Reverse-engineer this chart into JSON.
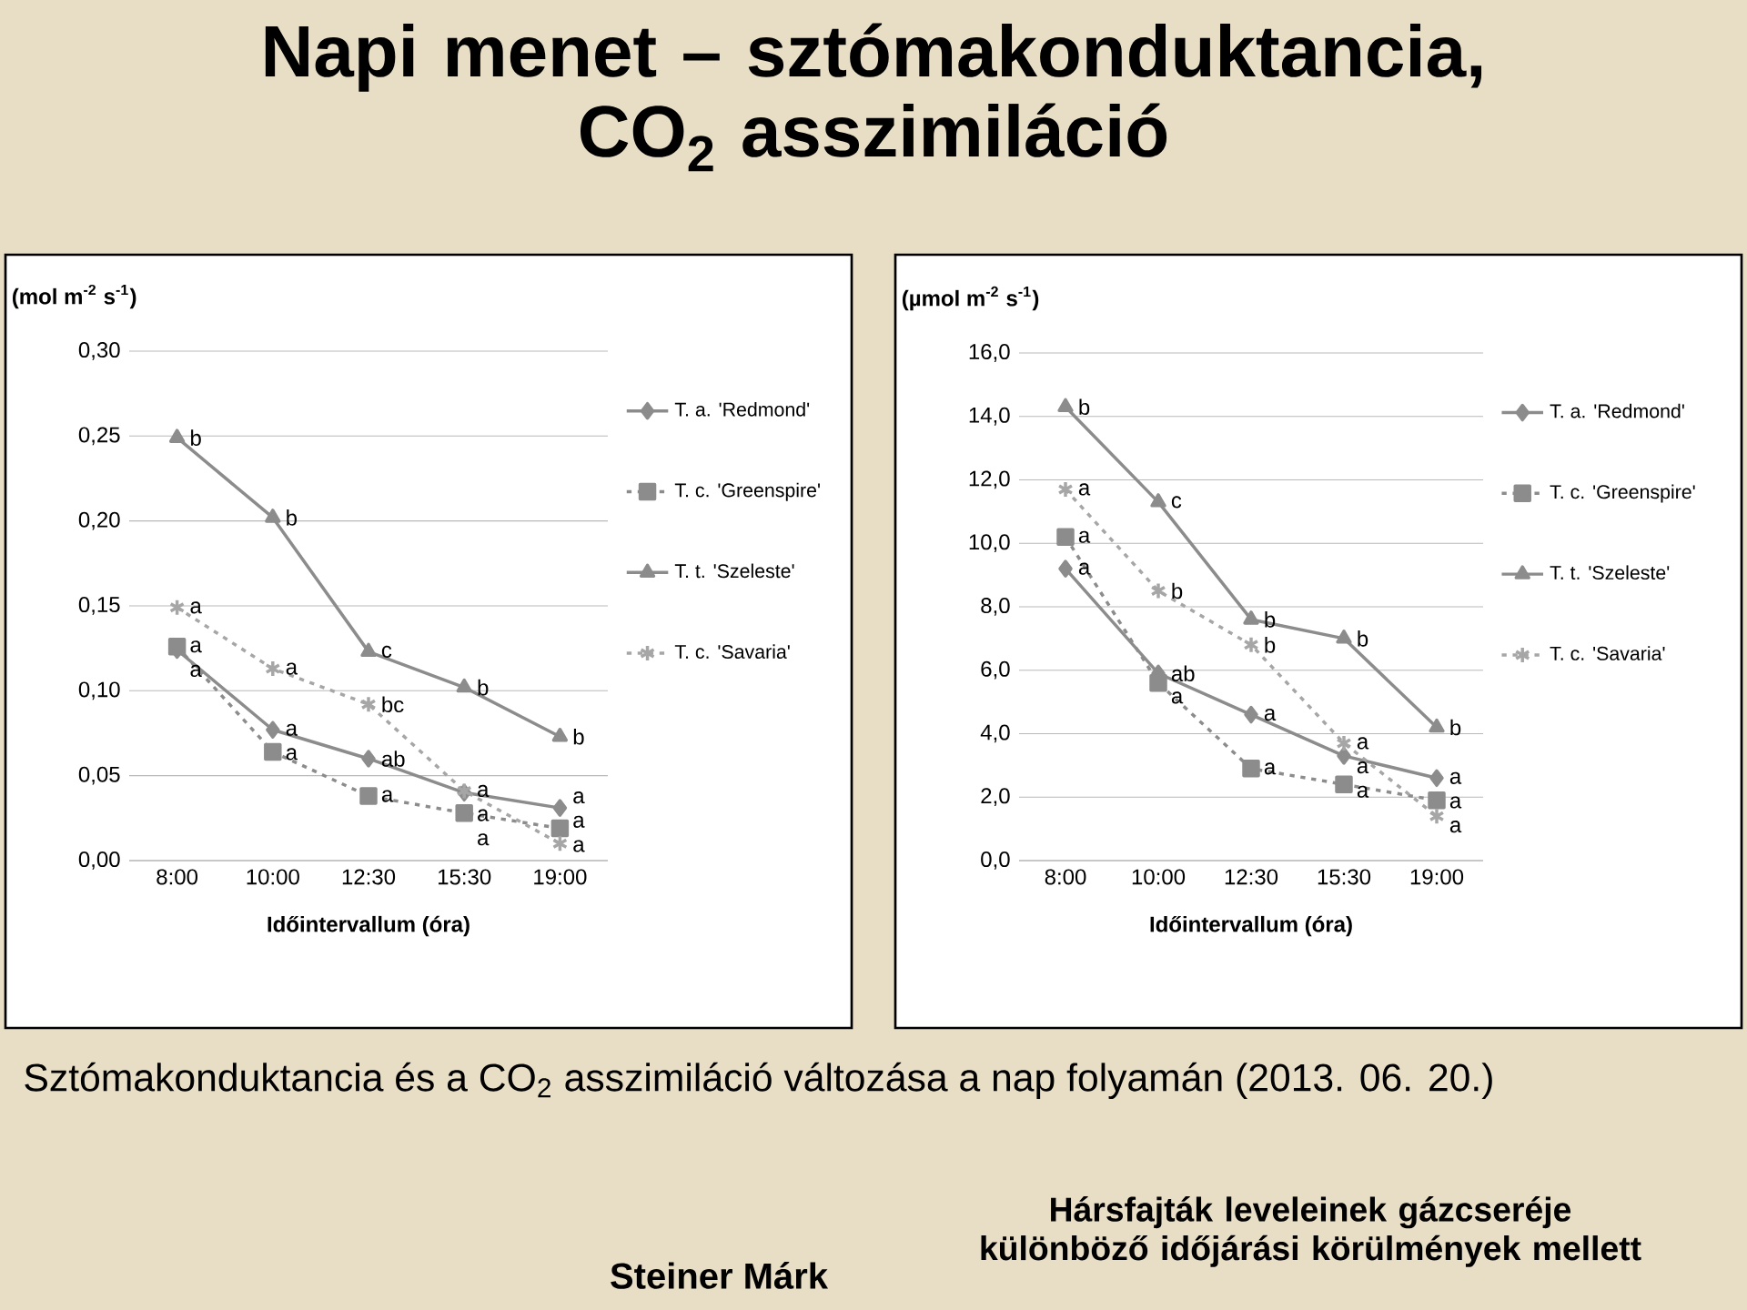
{
  "chart_data": [
    {
      "type": "line",
      "title": "Napi menet – sztómakonduktancia, CO$_{2}$ asszimiláció",
      "ylabel": "(mol m$^{-2}$ s$^{-1}$)",
      "xlabel": "Időintervallum (óra)",
      "categories": [
        "8:00",
        "10:00",
        "12:30",
        "15:30",
        "19:00"
      ],
      "ylim": [
        0,
        0.3
      ],
      "yticks": [
        {
          "value": 0,
          "label": "0,00"
        },
        {
          "value": 0.05,
          "label": "0,05"
        },
        {
          "value": 0.1,
          "label": "0,10"
        },
        {
          "value": 0.15,
          "label": "0,15"
        },
        {
          "value": 0.2,
          "label": "0,20"
        },
        {
          "value": 0.25,
          "label": "0,25"
        },
        {
          "value": 0.3,
          "label": "0,30"
        }
      ],
      "grid": "y",
      "legend": "right",
      "series": [
        {
          "name": "T. a. 'Redmond'",
          "color": "#8c8c8c",
          "marker": "diamond",
          "line_style": "solid",
          "values": [
            0.124,
            0.077,
            0.06,
            0.04,
            0.031
          ],
          "value_labels": [
            "a",
            "a",
            "ab",
            "a",
            "a"
          ]
        },
        {
          "name": "T. c. 'Greenspire'",
          "color": "#8c8c8c",
          "marker": "square",
          "line_style": "dotted",
          "values": [
            0.126,
            0.064,
            0.038,
            0.028,
            0.019
          ],
          "value_labels": [
            "a",
            "a",
            "a",
            "a",
            "a"
          ]
        },
        {
          "name": "T. t. 'Szeleste'",
          "color": "#8c8c8c",
          "marker": "triangle",
          "line_style": "solid",
          "values": [
            0.249,
            0.202,
            0.123,
            0.102,
            0.073
          ],
          "value_labels": [
            "b",
            "b",
            "c",
            "b",
            "b"
          ]
        },
        {
          "name": "T. c. 'Savaria'",
          "color": "#a6a6a6",
          "marker": "cross",
          "line_style": "dotted",
          "values": [
            0.149,
            0.113,
            0.092,
            0.041,
            0.01
          ],
          "value_labels": [
            "a",
            "a",
            "bc",
            "a",
            "a"
          ]
        }
      ],
      "annotations": [
        "Sztómakonduktancia és a CO$_{2}$ asszimiláció változása a nap folyamán (2013. 06. 20.)",
        "Hársfajták leveleinek gázcseréje különböző időjárási körülmények mellett",
        "Steiner Márk"
      ]
    },
    {
      "type": "line",
      "ylabel": "(µmol m$^{-2}$ s$^{-1}$)",
      "xlabel": "Időintervallum (óra)",
      "categories": [
        "8:00",
        "10:00",
        "12:30",
        "15:30",
        "19:00"
      ],
      "ylim": [
        0,
        16
      ],
      "yticks": [
        {
          "value": 0,
          "label": "0,0"
        },
        {
          "value": 2,
          "label": "2,0"
        },
        {
          "value": 4,
          "label": "4,0"
        },
        {
          "value": 6,
          "label": "6,0"
        },
        {
          "value": 8,
          "label": "8,0"
        },
        {
          "value": 10,
          "label": "10,0"
        },
        {
          "value": 12,
          "label": "12,0"
        },
        {
          "value": 14,
          "label": "14,0"
        },
        {
          "value": 16,
          "label": "16,0"
        }
      ],
      "grid": "y",
      "legend": "right",
      "series": [
        {
          "name": "T. a. 'Redmond'",
          "color": "#8c8c8c",
          "marker": "diamond",
          "line_style": "solid",
          "values": [
            9.2,
            5.9,
            4.6,
            3.3,
            2.6
          ],
          "value_labels": [
            "a",
            "ab",
            "a",
            "a",
            "a"
          ]
        },
        {
          "name": "T. c. 'Greenspire'",
          "color": "#8c8c8c",
          "marker": "square",
          "line_style": "dotted",
          "values": [
            10.2,
            5.6,
            2.9,
            2.4,
            1.9
          ],
          "value_labels": [
            "a",
            "a",
            "a",
            "a",
            "a"
          ]
        },
        {
          "name": "T. t. 'Szeleste'",
          "color": "#8c8c8c",
          "marker": "triangle",
          "line_style": "solid",
          "values": [
            14.3,
            11.3,
            7.6,
            7.0,
            4.2
          ],
          "value_labels": [
            "b",
            "c",
            "b",
            "b",
            "b"
          ]
        },
        {
          "name": "T. c. 'Savaria'",
          "color": "#a6a6a6",
          "marker": "cross",
          "line_style": "dotted",
          "values": [
            11.7,
            8.5,
            6.8,
            3.7,
            1.4
          ],
          "value_labels": [
            "a",
            "b",
            "b",
            "a",
            "a"
          ]
        }
      ]
    }
  ]
}
